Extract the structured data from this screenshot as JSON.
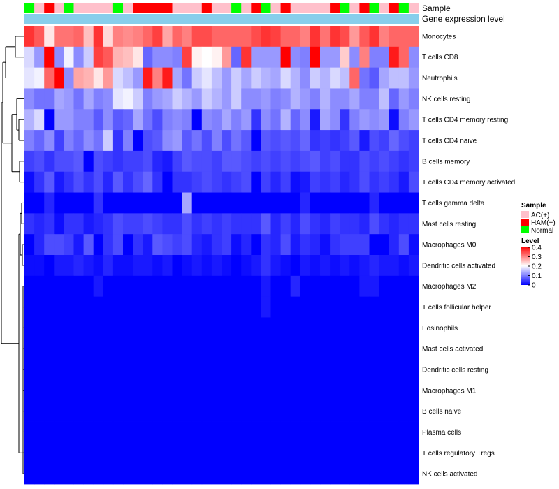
{
  "chart_data": {
    "type": "heatmap",
    "title": "",
    "annotation_rows": [
      {
        "label": "Sample"
      },
      {
        "label": "Gene expression level"
      }
    ],
    "sample_groups": [
      "Normal",
      "AC(+)",
      "HAM(+)",
      "AC(+)",
      "Normal",
      "AC(+)",
      "AC(+)",
      "AC(+)",
      "AC(+)",
      "Normal",
      "AC(+)",
      "HAM(+)",
      "HAM(+)",
      "HAM(+)",
      "HAM(+)",
      "AC(+)",
      "AC(+)",
      "AC(+)",
      "HAM(+)",
      "AC(+)",
      "AC(+)",
      "Normal",
      "AC(+)",
      "HAM(+)",
      "Normal",
      "AC(+)",
      "HAM(+)",
      "AC(+)",
      "AC(+)",
      "AC(+)",
      "AC(+)",
      "HAM(+)",
      "Normal",
      "AC(+)",
      "HAM(+)",
      "Normal",
      "AC(+)",
      "HAM(+)",
      "Normal",
      "AC(+)"
    ],
    "group_colors": {
      "AC(+)": "#ffc0cb",
      "HAM(+)": "#ff0000",
      "Normal": "#00ff00"
    },
    "expression_bar_color": "#87ceeb",
    "rows": [
      "Monocytes",
      "T cells CD8",
      "Neutrophils",
      "NK cells resting",
      "T cells CD4 memory resting",
      "T cells CD4 naive",
      "B cells memory",
      "T cells CD4 memory activated",
      "T cells gamma delta",
      "Mast cells resting",
      "Macrophages M0",
      "Dendritic cells activated",
      "Macrophages M2",
      "T cells follicular helper",
      "Eosinophils",
      "Mast cells activated",
      "Dendritic cells resting",
      "Macrophages M1",
      "B cells naive",
      "Plasma cells",
      "T cells regulatory  Tregs",
      "NK cells activated"
    ],
    "values": [
      [
        0.36,
        0.33,
        0.22,
        0.31,
        0.31,
        0.32,
        0.25,
        0.36,
        0.23,
        0.3,
        0.29,
        0.3,
        0.32,
        0.35,
        0.27,
        0.32,
        0.3,
        0.34,
        0.34,
        0.32,
        0.32,
        0.32,
        0.32,
        0.34,
        0.36,
        0.35,
        0.32,
        0.32,
        0.3,
        0.36,
        0.31,
        0.36,
        0.34,
        0.28,
        0.33,
        0.36,
        0.3,
        0.32,
        0.32,
        0.32
      ],
      [
        0.17,
        0.12,
        0.4,
        0.11,
        0.19,
        0.11,
        0.16,
        0.35,
        0.33,
        0.26,
        0.25,
        0.22,
        0.08,
        0.11,
        0.11,
        0.1,
        0.35,
        0.21,
        0.2,
        0.21,
        0.28,
        0.08,
        0.36,
        0.12,
        0.12,
        0.12,
        0.4,
        0.11,
        0.1,
        0.4,
        0.12,
        0.12,
        0.24,
        0.11,
        0.3,
        0.1,
        0.1,
        0.38,
        0.32,
        0.11
      ],
      [
        0.18,
        0.19,
        0.32,
        0.4,
        0.11,
        0.27,
        0.26,
        0.22,
        0.28,
        0.17,
        0.15,
        0.12,
        0.38,
        0.3,
        0.38,
        0.13,
        0.09,
        0.16,
        0.18,
        0.15,
        0.12,
        0.16,
        0.13,
        0.16,
        0.14,
        0.13,
        0.17,
        0.14,
        0.11,
        0.16,
        0.14,
        0.17,
        0.15,
        0.32,
        0.09,
        0.07,
        0.13,
        0.15,
        0.15,
        0.12
      ],
      [
        0.11,
        0.09,
        0.09,
        0.13,
        0.12,
        0.09,
        0.13,
        0.1,
        0.11,
        0.18,
        0.19,
        0.16,
        0.1,
        0.12,
        0.13,
        0.16,
        0.14,
        0.12,
        0.16,
        0.14,
        0.12,
        0.16,
        0.11,
        0.11,
        0.12,
        0.1,
        0.11,
        0.14,
        0.12,
        0.1,
        0.14,
        0.11,
        0.11,
        0.13,
        0.1,
        0.1,
        0.15,
        0.08,
        0.12,
        0.1
      ],
      [
        0.14,
        0.17,
        0.0,
        0.12,
        0.12,
        0.1,
        0.1,
        0.07,
        0.11,
        0.07,
        0.08,
        0.13,
        0.09,
        0.06,
        0.1,
        0.11,
        0.1,
        0.0,
        0.11,
        0.1,
        0.13,
        0.1,
        0.12,
        0.04,
        0.11,
        0.09,
        0.14,
        0.08,
        0.11,
        0.02,
        0.13,
        0.11,
        0.04,
        0.1,
        0.12,
        0.11,
        0.12,
        0.01,
        0.1,
        0.12
      ],
      [
        0.1,
        0.08,
        0.11,
        0.05,
        0.1,
        0.08,
        0.11,
        0.09,
        0.16,
        0.04,
        0.1,
        0.0,
        0.06,
        0.07,
        0.11,
        0.12,
        0.07,
        0.09,
        0.06,
        0.1,
        0.06,
        0.09,
        0.07,
        0.0,
        0.07,
        0.06,
        0.07,
        0.06,
        0.08,
        0.04,
        0.05,
        0.04,
        0.05,
        0.07,
        0.02,
        0.06,
        0.05,
        0.08,
        0.06,
        0.05
      ],
      [
        0.05,
        0.06,
        0.04,
        0.06,
        0.06,
        0.07,
        0.0,
        0.06,
        0.05,
        0.04,
        0.05,
        0.05,
        0.06,
        0.03,
        0.02,
        0.05,
        0.07,
        0.06,
        0.06,
        0.05,
        0.07,
        0.07,
        0.06,
        0.05,
        0.06,
        0.05,
        0.06,
        0.05,
        0.06,
        0.07,
        0.05,
        0.06,
        0.04,
        0.04,
        0.06,
        0.05,
        0.06,
        0.05,
        0.04,
        0.05
      ],
      [
        0.01,
        0.04,
        0.07,
        0.02,
        0.04,
        0.06,
        0.04,
        0.06,
        0.03,
        0.07,
        0.04,
        0.06,
        0.08,
        0.04,
        0.0,
        0.04,
        0.04,
        0.05,
        0.06,
        0.05,
        0.04,
        0.05,
        0.06,
        0.0,
        0.05,
        0.03,
        0.05,
        0.01,
        0.02,
        0.05,
        0.04,
        0.05,
        0.03,
        0.04,
        0.06,
        0.04,
        0.05,
        0.04,
        0.02,
        0.06
      ],
      [
        0.0,
        0.0,
        0.03,
        0.0,
        0.0,
        0.0,
        0.0,
        0.04,
        0.0,
        0.0,
        0.0,
        0.0,
        0.0,
        0.0,
        0.0,
        0.0,
        0.13,
        0.0,
        0.0,
        0.0,
        0.0,
        0.0,
        0.0,
        0.0,
        0.0,
        0.0,
        0.0,
        0.0,
        0.03,
        0.0,
        0.0,
        0.0,
        0.0,
        0.0,
        0.0,
        0.03,
        0.0,
        0.0,
        0.0,
        0.0
      ],
      [
        0.04,
        0.03,
        0.04,
        0.01,
        0.04,
        0.04,
        0.02,
        0.03,
        0.04,
        0.06,
        0.05,
        0.05,
        0.06,
        0.05,
        0.04,
        0.04,
        0.06,
        0.04,
        0.05,
        0.04,
        0.05,
        0.04,
        0.04,
        0.04,
        0.07,
        0.03,
        0.05,
        0.03,
        0.06,
        0.04,
        0.03,
        0.05,
        0.04,
        0.04,
        0.03,
        0.06,
        0.04,
        0.03,
        0.04,
        0.04
      ],
      [
        0.0,
        0.03,
        0.06,
        0.06,
        0.05,
        0.02,
        0.07,
        0.0,
        0.04,
        0.06,
        0.0,
        0.04,
        0.02,
        0.07,
        0.06,
        0.05,
        0.06,
        0.03,
        0.02,
        0.04,
        0.05,
        0.01,
        0.03,
        0.0,
        0.04,
        0.03,
        0.06,
        0.02,
        0.04,
        0.03,
        0.01,
        0.04,
        0.05,
        0.05,
        0.05,
        0.0,
        0.0,
        0.03,
        0.06,
        0.01
      ],
      [
        0.01,
        0.01,
        0.0,
        0.02,
        0.02,
        0.03,
        0.02,
        0.01,
        0.03,
        0.01,
        0.01,
        0.02,
        0.02,
        0.01,
        0.02,
        0.0,
        0.01,
        0.02,
        0.01,
        0.02,
        0.01,
        0.0,
        0.01,
        0.02,
        0.04,
        0.02,
        0.01,
        0.0,
        0.02,
        0.01,
        0.02,
        0.01,
        0.02,
        0.01,
        0.02,
        0.03,
        0.02,
        0.02,
        0.01,
        0.02
      ],
      [
        0.0,
        0.0,
        0.0,
        0.0,
        0.0,
        0.0,
        0.0,
        0.02,
        0.0,
        0.0,
        0.0,
        0.0,
        0.0,
        0.0,
        0.0,
        0.0,
        0.0,
        0.0,
        0.0,
        0.0,
        0.0,
        0.0,
        0.0,
        0.0,
        0.02,
        0.0,
        0.0,
        0.03,
        0.0,
        0.0,
        0.0,
        0.0,
        0.0,
        0.0,
        0.02,
        0.02,
        0.0,
        0.0,
        0.0,
        0.0
      ],
      [
        0.0,
        0.0,
        0.0,
        0.0,
        0.0,
        0.0,
        0.0,
        0.0,
        0.0,
        0.0,
        0.0,
        0.0,
        0.0,
        0.0,
        0.0,
        0.0,
        0.0,
        0.0,
        0.0,
        0.0,
        0.0,
        0.0,
        0.0,
        0.0,
        0.02,
        0.0,
        0.0,
        0.0,
        0.0,
        0.0,
        0.0,
        0.0,
        0.0,
        0.0,
        0.0,
        0.0,
        0.0,
        0.0,
        0.0,
        0.0
      ],
      [
        0.0,
        0.0,
        0.0,
        0.0,
        0.0,
        0.0,
        0.0,
        0.0,
        0.0,
        0.0,
        0.0,
        0.0,
        0.0,
        0.0,
        0.0,
        0.0,
        0.0,
        0.0,
        0.0,
        0.0,
        0.0,
        0.0,
        0.0,
        0.0,
        0.0,
        0.0,
        0.0,
        0.0,
        0.0,
        0.0,
        0.0,
        0.0,
        0.0,
        0.0,
        0.0,
        0.0,
        0.0,
        0.0,
        0.0,
        0.0
      ],
      [
        0.0,
        0.0,
        0.0,
        0.0,
        0.0,
        0.0,
        0.0,
        0.0,
        0.0,
        0.0,
        0.0,
        0.0,
        0.0,
        0.0,
        0.0,
        0.0,
        0.0,
        0.0,
        0.0,
        0.0,
        0.0,
        0.0,
        0.0,
        0.0,
        0.0,
        0.0,
        0.0,
        0.0,
        0.0,
        0.0,
        0.0,
        0.0,
        0.0,
        0.0,
        0.0,
        0.0,
        0.0,
        0.0,
        0.0,
        0.0
      ],
      [
        0.0,
        0.0,
        0.0,
        0.0,
        0.0,
        0.0,
        0.0,
        0.0,
        0.0,
        0.0,
        0.0,
        0.0,
        0.0,
        0.0,
        0.0,
        0.0,
        0.0,
        0.0,
        0.0,
        0.0,
        0.0,
        0.0,
        0.0,
        0.0,
        0.0,
        0.0,
        0.0,
        0.0,
        0.0,
        0.0,
        0.0,
        0.0,
        0.0,
        0.0,
        0.0,
        0.0,
        0.0,
        0.0,
        0.0,
        0.0
      ],
      [
        0.0,
        0.0,
        0.0,
        0.0,
        0.0,
        0.0,
        0.0,
        0.0,
        0.0,
        0.0,
        0.0,
        0.0,
        0.0,
        0.0,
        0.0,
        0.0,
        0.0,
        0.0,
        0.0,
        0.0,
        0.0,
        0.0,
        0.0,
        0.0,
        0.0,
        0.0,
        0.0,
        0.0,
        0.0,
        0.0,
        0.0,
        0.0,
        0.0,
        0.0,
        0.0,
        0.0,
        0.0,
        0.0,
        0.0,
        0.0
      ],
      [
        0.0,
        0.0,
        0.0,
        0.0,
        0.0,
        0.0,
        0.0,
        0.0,
        0.0,
        0.0,
        0.0,
        0.0,
        0.0,
        0.0,
        0.0,
        0.0,
        0.0,
        0.0,
        0.0,
        0.0,
        0.0,
        0.0,
        0.0,
        0.0,
        0.0,
        0.0,
        0.0,
        0.0,
        0.0,
        0.0,
        0.0,
        0.0,
        0.0,
        0.0,
        0.0,
        0.0,
        0.0,
        0.0,
        0.0,
        0.0
      ],
      [
        0.0,
        0.0,
        0.0,
        0.0,
        0.0,
        0.0,
        0.0,
        0.0,
        0.0,
        0.0,
        0.0,
        0.0,
        0.0,
        0.0,
        0.0,
        0.0,
        0.0,
        0.0,
        0.0,
        0.0,
        0.0,
        0.0,
        0.0,
        0.0,
        0.0,
        0.0,
        0.0,
        0.0,
        0.0,
        0.0,
        0.0,
        0.0,
        0.0,
        0.0,
        0.0,
        0.0,
        0.0,
        0.0,
        0.0,
        0.0
      ],
      [
        0.0,
        0.0,
        0.0,
        0.0,
        0.0,
        0.0,
        0.0,
        0.0,
        0.0,
        0.0,
        0.0,
        0.0,
        0.0,
        0.0,
        0.0,
        0.0,
        0.0,
        0.0,
        0.0,
        0.0,
        0.0,
        0.0,
        0.0,
        0.0,
        0.0,
        0.0,
        0.0,
        0.0,
        0.0,
        0.0,
        0.0,
        0.0,
        0.0,
        0.0,
        0.0,
        0.0,
        0.0,
        0.0,
        0.0,
        0.0
      ],
      [
        0.0,
        0.0,
        0.0,
        0.0,
        0.0,
        0.0,
        0.0,
        0.0,
        0.0,
        0.0,
        0.0,
        0.0,
        0.0,
        0.0,
        0.0,
        0.0,
        0.0,
        0.0,
        0.0,
        0.0,
        0.0,
        0.0,
        0.0,
        0.0,
        0.0,
        0.0,
        0.0,
        0.0,
        0.0,
        0.0,
        0.0,
        0.0,
        0.0,
        0.0,
        0.0,
        0.0,
        0.0,
        0.0,
        0.0,
        0.0
      ]
    ],
    "color_scale": {
      "low": "#0000ff",
      "mid": "#ffffff",
      "high": "#ff0000",
      "range": [
        0,
        0.4
      ],
      "midpoint": 0.2
    },
    "legend": {
      "position": "right",
      "sample_title": "Sample",
      "sample_entries": [
        "AC(+)",
        "HAM(+)",
        "Normal"
      ],
      "level_title": "Level",
      "level_ticks": [
        "0.4",
        "0.3",
        "0.2",
        "0.1",
        "0"
      ]
    },
    "dendrogram": {
      "side": "left",
      "leaves": 22
    }
  }
}
